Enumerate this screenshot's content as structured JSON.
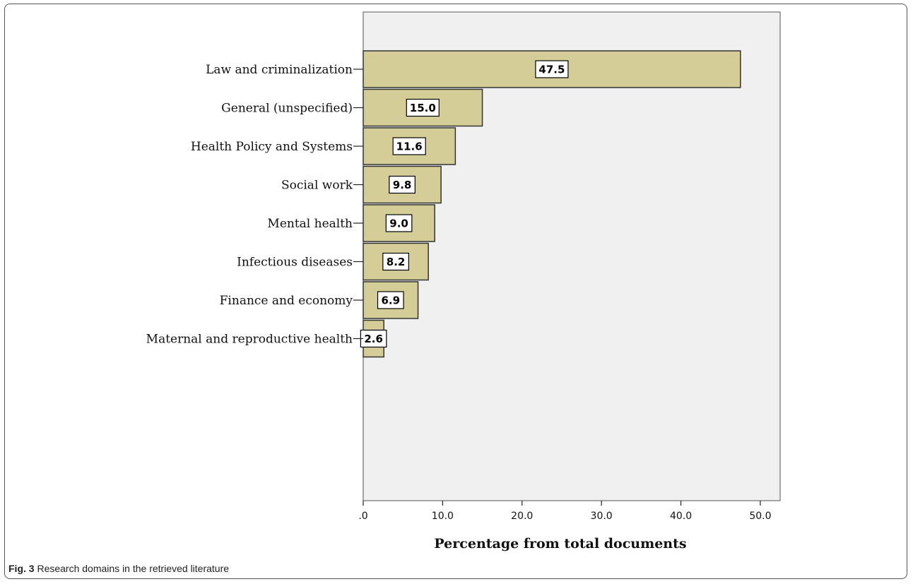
{
  "chart_data": {
    "type": "bar",
    "orientation": "horizontal",
    "categories": [
      "Law and criminalization",
      "General (unspecified)",
      "Health Policy and Systems",
      "Social work",
      "Mental health",
      "Infectious diseases",
      "Finance and economy",
      "Maternal and reproductive health"
    ],
    "values": [
      47.5,
      15.0,
      11.6,
      9.8,
      9.0,
      8.2,
      6.9,
      2.6
    ],
    "data_labels": [
      "47.5",
      "15.0",
      "11.6",
      "9.8",
      "9.0",
      "8.2",
      "6.9",
      "2.6"
    ],
    "xlabel": "Percentage from total documents",
    "xlim": [
      0,
      52.5
    ],
    "xticks": [
      0,
      10,
      20,
      30,
      40,
      50
    ],
    "xtick_labels": [
      ".0",
      "10.0",
      "20.0",
      "30.0",
      "40.0",
      "50.0"
    ],
    "grid": false,
    "colors": {
      "bar": "#d5cd98",
      "bar_edge": "#333333",
      "plot_bg": "#f0f0f0"
    }
  },
  "caption": {
    "fig_label": "Fig. 3",
    "text": "Research domains in the retrieved literature"
  }
}
